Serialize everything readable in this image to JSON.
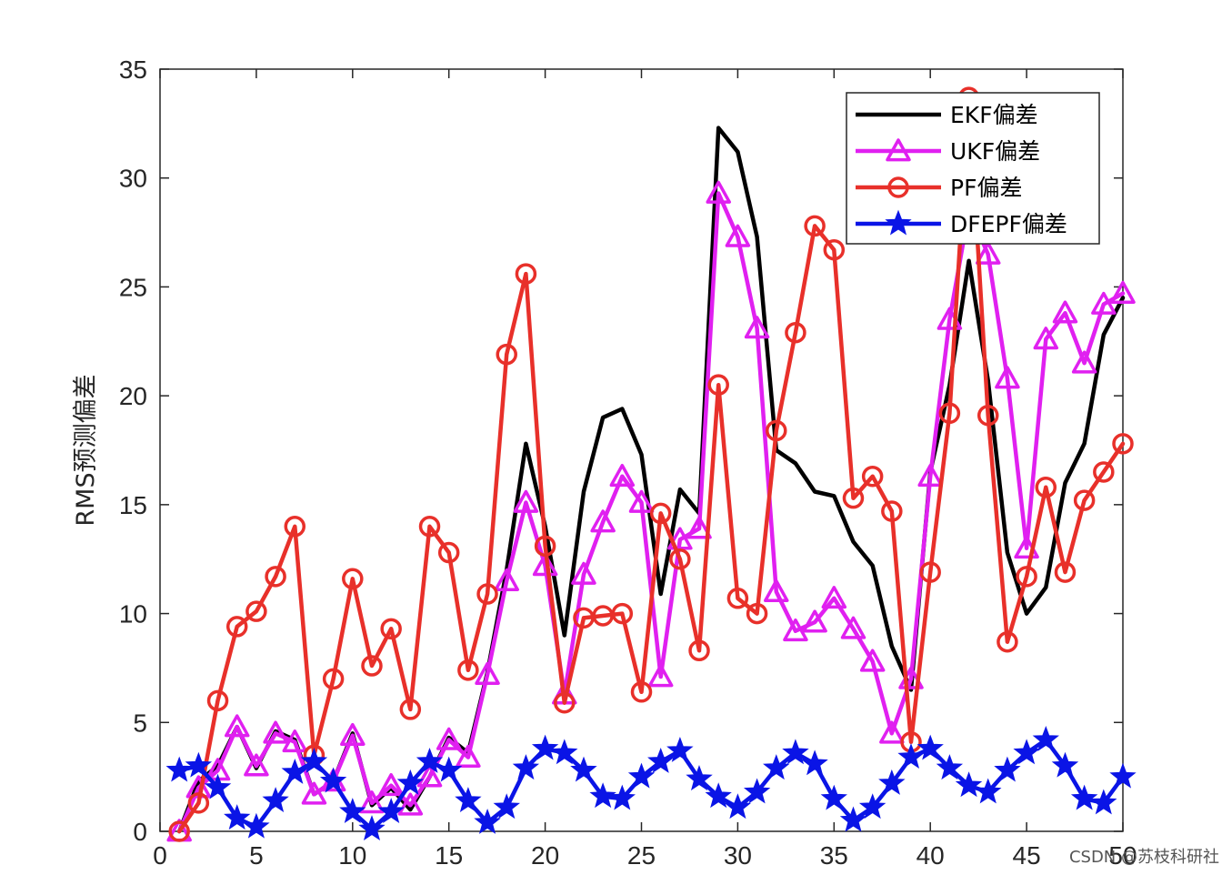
{
  "watermark": "CSDN @苏枝科研社",
  "chart_data": {
    "type": "line",
    "title": "",
    "xlabel": "",
    "ylabel": "RMS预测偏差",
    "xlim": [
      0,
      50
    ],
    "ylim": [
      0,
      35
    ],
    "xticks": [
      0,
      5,
      10,
      15,
      20,
      25,
      30,
      35,
      40,
      45,
      50
    ],
    "yticks": [
      0,
      5,
      10,
      15,
      20,
      25,
      30,
      35
    ],
    "grid": false,
    "legend_position": "top-right",
    "x": [
      1,
      2,
      3,
      4,
      5,
      6,
      7,
      8,
      9,
      10,
      11,
      12,
      13,
      14,
      15,
      16,
      17,
      18,
      19,
      20,
      21,
      22,
      23,
      24,
      25,
      26,
      27,
      28,
      29,
      30,
      31,
      32,
      33,
      34,
      35,
      36,
      37,
      38,
      39,
      40,
      41,
      42,
      43,
      44,
      45,
      46,
      47,
      48,
      49,
      50
    ],
    "series": [
      {
        "name": "EKF偏差",
        "color": "#000000",
        "marker": "point",
        "values": [
          0,
          2.3,
          3.0,
          4.8,
          2.9,
          4.6,
          4.2,
          1.7,
          2.3,
          4.5,
          1.2,
          2.0,
          1.0,
          2.5,
          4.3,
          3.6,
          7.3,
          12.0,
          17.8,
          14.0,
          9.0,
          15.6,
          19.0,
          19.4,
          17.3,
          10.9,
          15.7,
          14.6,
          32.3,
          31.2,
          27.3,
          17.5,
          16.9,
          15.6,
          15.4,
          13.3,
          12.2,
          8.5,
          6.5,
          16.5,
          20.5,
          26.2,
          20.7,
          12.8,
          10.0,
          11.2,
          16.0,
          17.8,
          22.8,
          24.5
        ]
      },
      {
        "name": "UKF偏差",
        "color": "#e020f0",
        "marker": "triangle",
        "values": [
          0,
          2.0,
          2.8,
          4.8,
          3.0,
          4.5,
          4.1,
          1.7,
          2.3,
          4.4,
          1.3,
          2.1,
          1.2,
          2.5,
          4.2,
          3.4,
          7.2,
          11.5,
          15.1,
          12.2,
          6.3,
          11.8,
          14.2,
          16.3,
          15.1,
          7.1,
          13.4,
          13.9,
          29.3,
          27.3,
          23.1,
          11.0,
          9.2,
          9.6,
          10.7,
          9.3,
          7.8,
          4.5,
          7.0,
          16.3,
          23.5,
          28.5,
          26.5,
          20.8,
          13.0,
          22.6,
          23.8,
          21.5,
          24.2,
          24.7
        ]
      },
      {
        "name": "PF偏差",
        "color": "#e8302a",
        "marker": "circle",
        "values": [
          0,
          1.3,
          6.0,
          9.4,
          10.1,
          11.7,
          14.0,
          3.5,
          7.0,
          11.6,
          7.6,
          9.3,
          5.6,
          14.0,
          12.8,
          7.4,
          10.9,
          21.9,
          25.6,
          13.1,
          5.9,
          9.8,
          9.9,
          10.0,
          6.4,
          14.6,
          12.5,
          8.3,
          20.5,
          10.7,
          10.0,
          18.4,
          22.9,
          27.8,
          26.7,
          15.3,
          16.3,
          14.7,
          4.1,
          11.9,
          19.2,
          33.7,
          19.1,
          8.7,
          11.7,
          15.8,
          11.9,
          15.2,
          16.5,
          17.8
        ]
      },
      {
        "name": "DFEPF偏差",
        "color": "#0a14e6",
        "marker": "star",
        "values": [
          2.8,
          3.0,
          2.0,
          0.6,
          0.2,
          1.4,
          2.7,
          3.2,
          2.3,
          0.9,
          0.1,
          0.9,
          2.2,
          3.2,
          2.8,
          1.4,
          0.4,
          1.1,
          2.9,
          3.8,
          3.6,
          2.8,
          1.6,
          1.5,
          2.5,
          3.2,
          3.7,
          2.4,
          1.6,
          1.1,
          1.8,
          2.9,
          3.6,
          3.1,
          1.5,
          0.5,
          1.1,
          2.2,
          3.4,
          3.8,
          2.9,
          2.1,
          1.8,
          2.8,
          3.6,
          4.2,
          3.0,
          1.5,
          1.3,
          2.5
        ]
      }
    ]
  }
}
